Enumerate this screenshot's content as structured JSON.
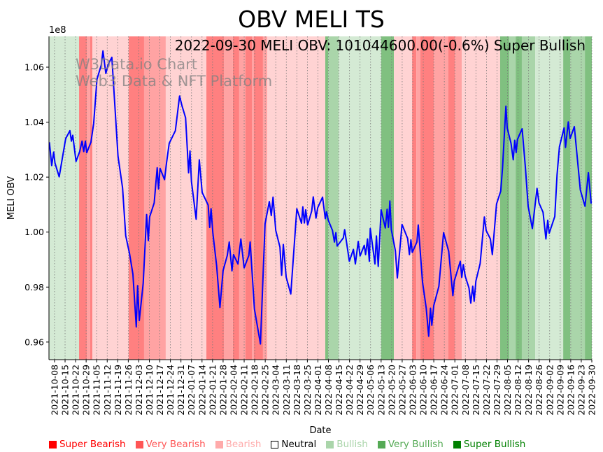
{
  "chart_data": {
    "type": "line",
    "title": "OBV MELI TS",
    "annotation": "2022-09-30 MELI OBV: 101044600.00(-0.6%) Super Bullish",
    "watermark": [
      "W3Data.io Chart",
      "Web3 Data & NFT Platform"
    ],
    "xlabel": "Date",
    "ylabel": "MELI OBV",
    "y_scale_label": "1e8",
    "x_unit": "days since 2021-10-08",
    "xlim": [
      -3.7,
      357
    ],
    "ylim": [
      0.9536,
      1.0712
    ],
    "yticks": [
      0.96,
      0.98,
      1.0,
      1.02,
      1.04,
      1.06
    ],
    "ytick_labels": [
      "0.96",
      "0.98",
      "1.00",
      "1.02",
      "1.04",
      "1.06"
    ],
    "xtick_labels": [
      "2021-10-08",
      "2021-10-15",
      "2021-10-22",
      "2021-10-29",
      "2021-11-05",
      "2021-11-12",
      "2021-11-19",
      "2021-11-26",
      "2021-12-03",
      "2021-12-10",
      "2021-12-17",
      "2021-12-24",
      "2021-12-31",
      "2022-01-07",
      "2022-01-14",
      "2022-01-21",
      "2022-01-28",
      "2022-02-04",
      "2022-02-11",
      "2022-02-18",
      "2022-02-25",
      "2022-03-04",
      "2022-03-11",
      "2022-03-18",
      "2022-03-25",
      "2022-04-01",
      "2022-04-08",
      "2022-04-15",
      "2022-04-22",
      "2022-04-29",
      "2022-05-06",
      "2022-05-13",
      "2022-05-20",
      "2022-05-27",
      "2022-06-03",
      "2022-06-10",
      "2022-06-17",
      "2022-06-24",
      "2022-07-01",
      "2022-07-08",
      "2022-07-15",
      "2022-07-22",
      "2022-07-29",
      "2022-08-05",
      "2022-08-12",
      "2022-08-19",
      "2022-08-26",
      "2022-09-02",
      "2022-09-09",
      "2022-09-16",
      "2022-09-23",
      "2022-09-30"
    ],
    "grid": "vertical dotted at date ticks",
    "legend_placement": "bottom",
    "legend": [
      {
        "label": "Super Bearish",
        "color": "#ff0000",
        "text_color": "#ff0000",
        "key": "super_bearish"
      },
      {
        "label": "Very Bearish",
        "color": "#ff5555",
        "text_color": "#ff5555",
        "key": "very_bearish"
      },
      {
        "label": "Bearish",
        "color": "#ffaaaa",
        "text_color": "#ffaaaa",
        "key": "bearish"
      },
      {
        "label": "Neutral",
        "color": "#ffffff",
        "text_color": "#000000",
        "key": "neutral"
      },
      {
        "label": "Bullish",
        "color": "#aad5aa",
        "text_color": "#aad5aa",
        "key": "bullish"
      },
      {
        "label": "Very Bullish",
        "color": "#55aa55",
        "text_color": "#55aa55",
        "key": "very_bullish"
      },
      {
        "label": "Super Bullish",
        "color": "#008000",
        "text_color": "#008000",
        "key": "super_bullish"
      }
    ],
    "band_colors": {
      "super_bearish": "#ff8080",
      "very_bearish": "#ffa3a3",
      "bearish": "#ffd3d3",
      "bullish": "#d4ead4",
      "very_bullish": "#aad5aa",
      "super_bullish": "#80c080"
    },
    "bands": [
      [
        -3.7,
        16.3,
        "bullish"
      ],
      [
        16.3,
        21.4,
        "super_bearish"
      ],
      [
        21.4,
        23.7,
        "very_bearish"
      ],
      [
        23.7,
        25.1,
        "super_bearish"
      ],
      [
        25.1,
        49.3,
        "bearish"
      ],
      [
        49.3,
        59.5,
        "super_bearish"
      ],
      [
        59.5,
        73.9,
        "very_bearish"
      ],
      [
        73.9,
        100.9,
        "bearish"
      ],
      [
        100.9,
        112.5,
        "super_bearish"
      ],
      [
        112.5,
        118.5,
        "very_bearish"
      ],
      [
        118.5,
        122.7,
        "super_bearish"
      ],
      [
        122.7,
        126.9,
        "very_bearish"
      ],
      [
        126.9,
        131.1,
        "super_bearish"
      ],
      [
        131.1,
        132.5,
        "very_bearish"
      ],
      [
        132.5,
        138.5,
        "super_bearish"
      ],
      [
        138.5,
        141.3,
        "very_bearish"
      ],
      [
        141.3,
        179.9,
        "bearish"
      ],
      [
        179.9,
        181.8,
        "super_bullish"
      ],
      [
        181.8,
        188.8,
        "very_bullish"
      ],
      [
        188.8,
        217.1,
        "bullish"
      ],
      [
        217.1,
        225.5,
        "super_bullish"
      ],
      [
        225.5,
        237.6,
        "bearish"
      ],
      [
        237.6,
        240.4,
        "super_bearish"
      ],
      [
        240.4,
        243.1,
        "very_bearish"
      ],
      [
        243.1,
        252,
        "super_bearish"
      ],
      [
        252,
        261.7,
        "very_bearish"
      ],
      [
        261.7,
        265.9,
        "super_bearish"
      ],
      [
        265.9,
        270.6,
        "very_bearish"
      ],
      [
        270.6,
        296.1,
        "bearish"
      ],
      [
        296.1,
        302.2,
        "super_bullish"
      ],
      [
        302.2,
        306.4,
        "very_bullish"
      ],
      [
        306.4,
        310.5,
        "super_bullish"
      ],
      [
        310.5,
        319.4,
        "very_bullish"
      ],
      [
        319.4,
        338,
        "bullish"
      ],
      [
        338,
        342.6,
        "super_bullish"
      ],
      [
        342.6,
        352.4,
        "very_bullish"
      ],
      [
        352.4,
        357,
        "super_bullish"
      ]
    ],
    "series": [
      {
        "name": "OBV",
        "color": "#0000ff",
        "x": [
          -3.4,
          -1.9,
          -0.6,
          0.3,
          3.1,
          7.4,
          10.2,
          11.2,
          12.1,
          14.3,
          16.7,
          18.3,
          19.4,
          20.5,
          21.4,
          24.2,
          26,
          28.2,
          31,
          32.2,
          34.1,
          35.7,
          38.1,
          42.2,
          45.2,
          47.3,
          49.9,
          52.1,
          54.3,
          55.2,
          56.3,
          58.9,
          61.2,
          62.3,
          63.2,
          66.2,
          68.2,
          69.1,
          70.1,
          73.1,
          74.4,
          76.2,
          80.3,
          83.1,
          84.6,
          87.1,
          89.1,
          90.0,
          91.0,
          94.1,
          96.2,
          98.1,
          102.1,
          103.1,
          104.0,
          105.2,
          107.7,
          109.9,
          112.0,
          114.8,
          116.1,
          117.9,
          118.9,
          121.9,
          123.8,
          126.0,
          129.1,
          130.0,
          132.8,
          136.8,
          139.9,
          142.7,
          144.0,
          145.2,
          147.0,
          149.8,
          150.9,
          152.0,
          153.9,
          157.0,
          161.0,
          164.1,
          165.0,
          166.0,
          166.9,
          168.2,
          170.9,
          171.9,
          173.7,
          174.9,
          178.1,
          179.9,
          180.7,
          181.9,
          184.7,
          186.0,
          186.9,
          187.8,
          191.9,
          192.8,
          195.9,
          198.6,
          199.9,
          201.8,
          203.0,
          205.8,
          206.7,
          208.0,
          209.2,
          209.8,
          212.9,
          213.9,
          215.1,
          217.0,
          219.8,
          221.0,
          221.9,
          222.8,
          223.8,
          226.5,
          227.8,
          230.9,
          234.6,
          235.8,
          236.8,
          237.7,
          240.8,
          241.7,
          244.5,
          247.0,
          248.6,
          249.8,
          250.7,
          252.0,
          255.4,
          258.5,
          261.9,
          264.7,
          265.6,
          269.6,
          270.6,
          271.6,
          272.9,
          275.4,
          276.6,
          277.9,
          278.8,
          280.0,
          282.8,
          285.6,
          286.8,
          289.6,
          290.9,
          293.7,
          296.5,
          297.7,
          299.9,
          300.8,
          303.3,
          304.8,
          305.8,
          306.7,
          307.6,
          310.7,
          312.9,
          314.7,
          317.5,
          320.6,
          321.9,
          324.6,
          326.5,
          327.7,
          328.7,
          332.4,
          333.9,
          335.5,
          338.6,
          339.5,
          341.4,
          342.6,
          345.4,
          349.4,
          352.5,
          354.7,
          356.6
        ],
        "y": [
          1.0327,
          1.0242,
          1.0291,
          1.0251,
          1.0201,
          1.034,
          1.0369,
          1.0331,
          1.0352,
          1.0257,
          1.0293,
          1.0331,
          1.0293,
          1.0331,
          1.0289,
          1.0327,
          1.0395,
          1.0556,
          1.0607,
          1.0659,
          1.0577,
          1.0611,
          1.0636,
          1.0276,
          1.0161,
          0.9987,
          0.992,
          0.9847,
          0.9655,
          0.9805,
          0.9678,
          0.9814,
          1.0064,
          0.9969,
          1.0055,
          1.0106,
          1.0234,
          1.0157,
          1.0232,
          1.0191,
          1.0251,
          1.0323,
          1.0369,
          1.0495,
          1.0461,
          1.0416,
          1.0216,
          1.0295,
          1.0183,
          1.0047,
          1.0263,
          1.0144,
          1.0098,
          1.0017,
          1.0085,
          0.9996,
          0.9877,
          0.9726,
          0.986,
          0.9915,
          0.9964,
          0.9859,
          0.9918,
          0.9884,
          0.9975,
          0.987,
          0.9915,
          0.9964,
          0.972,
          0.9593,
          1.003,
          1.0111,
          1.006,
          1.0127,
          1.0006,
          0.9945,
          0.9843,
          0.9955,
          0.9836,
          0.9775,
          1.0085,
          1.0032,
          1.0092,
          1.0033,
          1.0081,
          1.0026,
          1.0077,
          1.0128,
          1.0051,
          1.0089,
          1.0127,
          1.0049,
          1.0074,
          1.0043,
          1.0006,
          0.9964,
          0.9998,
          0.9949,
          0.9979,
          1.0009,
          0.9894,
          0.9937,
          0.9884,
          0.9966,
          0.9913,
          0.9952,
          0.9918,
          0.9975,
          0.9894,
          1.0013,
          0.9884,
          0.9986,
          0.9875,
          1.0081,
          1.0015,
          1.0083,
          1.0017,
          1.0113,
          1.0009,
          0.9932,
          0.9833,
          1.0028,
          0.9977,
          0.9918,
          0.9972,
          0.9926,
          0.9964,
          1.0026,
          0.9818,
          0.9723,
          0.9621,
          0.9723,
          0.9661,
          0.9733,
          0.9803,
          0.9998,
          0.993,
          0.9769,
          0.9822,
          0.9894,
          0.9835,
          0.9882,
          0.9839,
          0.9797,
          0.9742,
          0.9803,
          0.9748,
          0.9822,
          0.9886,
          1.0055,
          1.0006,
          0.9975,
          0.9918,
          1.0102,
          1.0149,
          1.0234,
          1.0458,
          1.0378,
          1.0323,
          1.0263,
          1.0334,
          1.0289,
          1.0337,
          1.0376,
          1.0234,
          1.0094,
          1.0013,
          1.0159,
          1.0106,
          1.0072,
          0.9975,
          1.0043,
          0.9996,
          1.0057,
          1.0208,
          1.031,
          1.0379,
          1.0308,
          1.0401,
          1.034,
          1.0384,
          1.0153,
          1.0094,
          1.0216,
          1.0104
        ]
      }
    ]
  }
}
